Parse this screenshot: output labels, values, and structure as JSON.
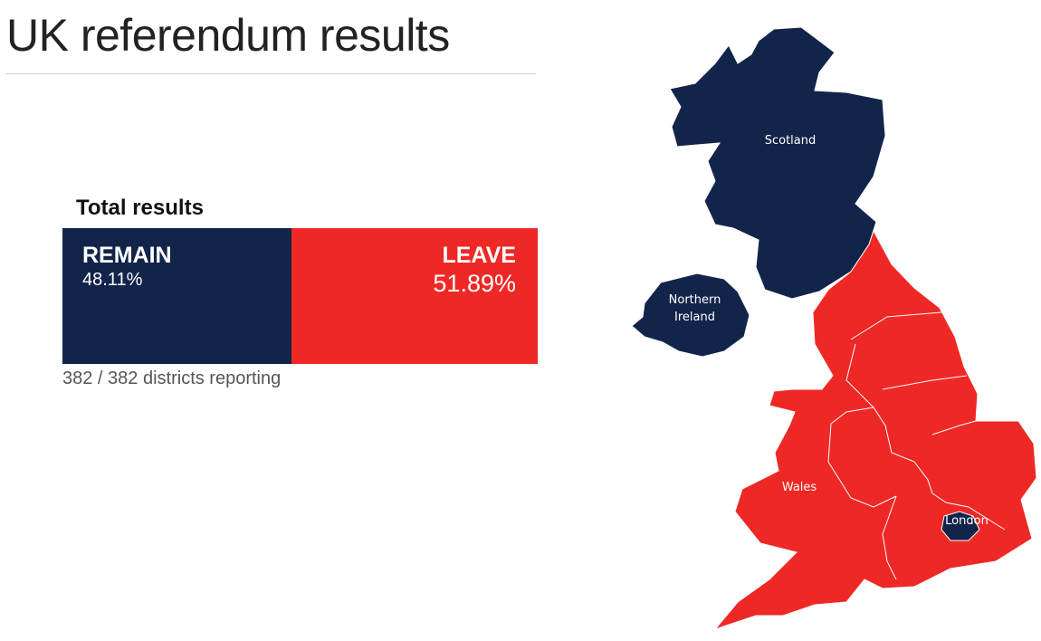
{
  "header": {
    "title": "UK referendum results"
  },
  "results": {
    "heading": "Total results",
    "remain": {
      "label": "REMAIN",
      "value": 48.11,
      "value_label": "48.11%",
      "color": "#13244a"
    },
    "leave": {
      "label": "LEAVE",
      "value": 51.89,
      "value_label": "51.89%",
      "color": "#ee2825"
    },
    "reporting": "382 / 382 districts reporting"
  },
  "map": {
    "regions": [
      {
        "label": "Scotland"
      },
      {
        "label": "Northern Ireland"
      },
      {
        "label": "Wales"
      },
      {
        "label": "London"
      }
    ]
  }
}
